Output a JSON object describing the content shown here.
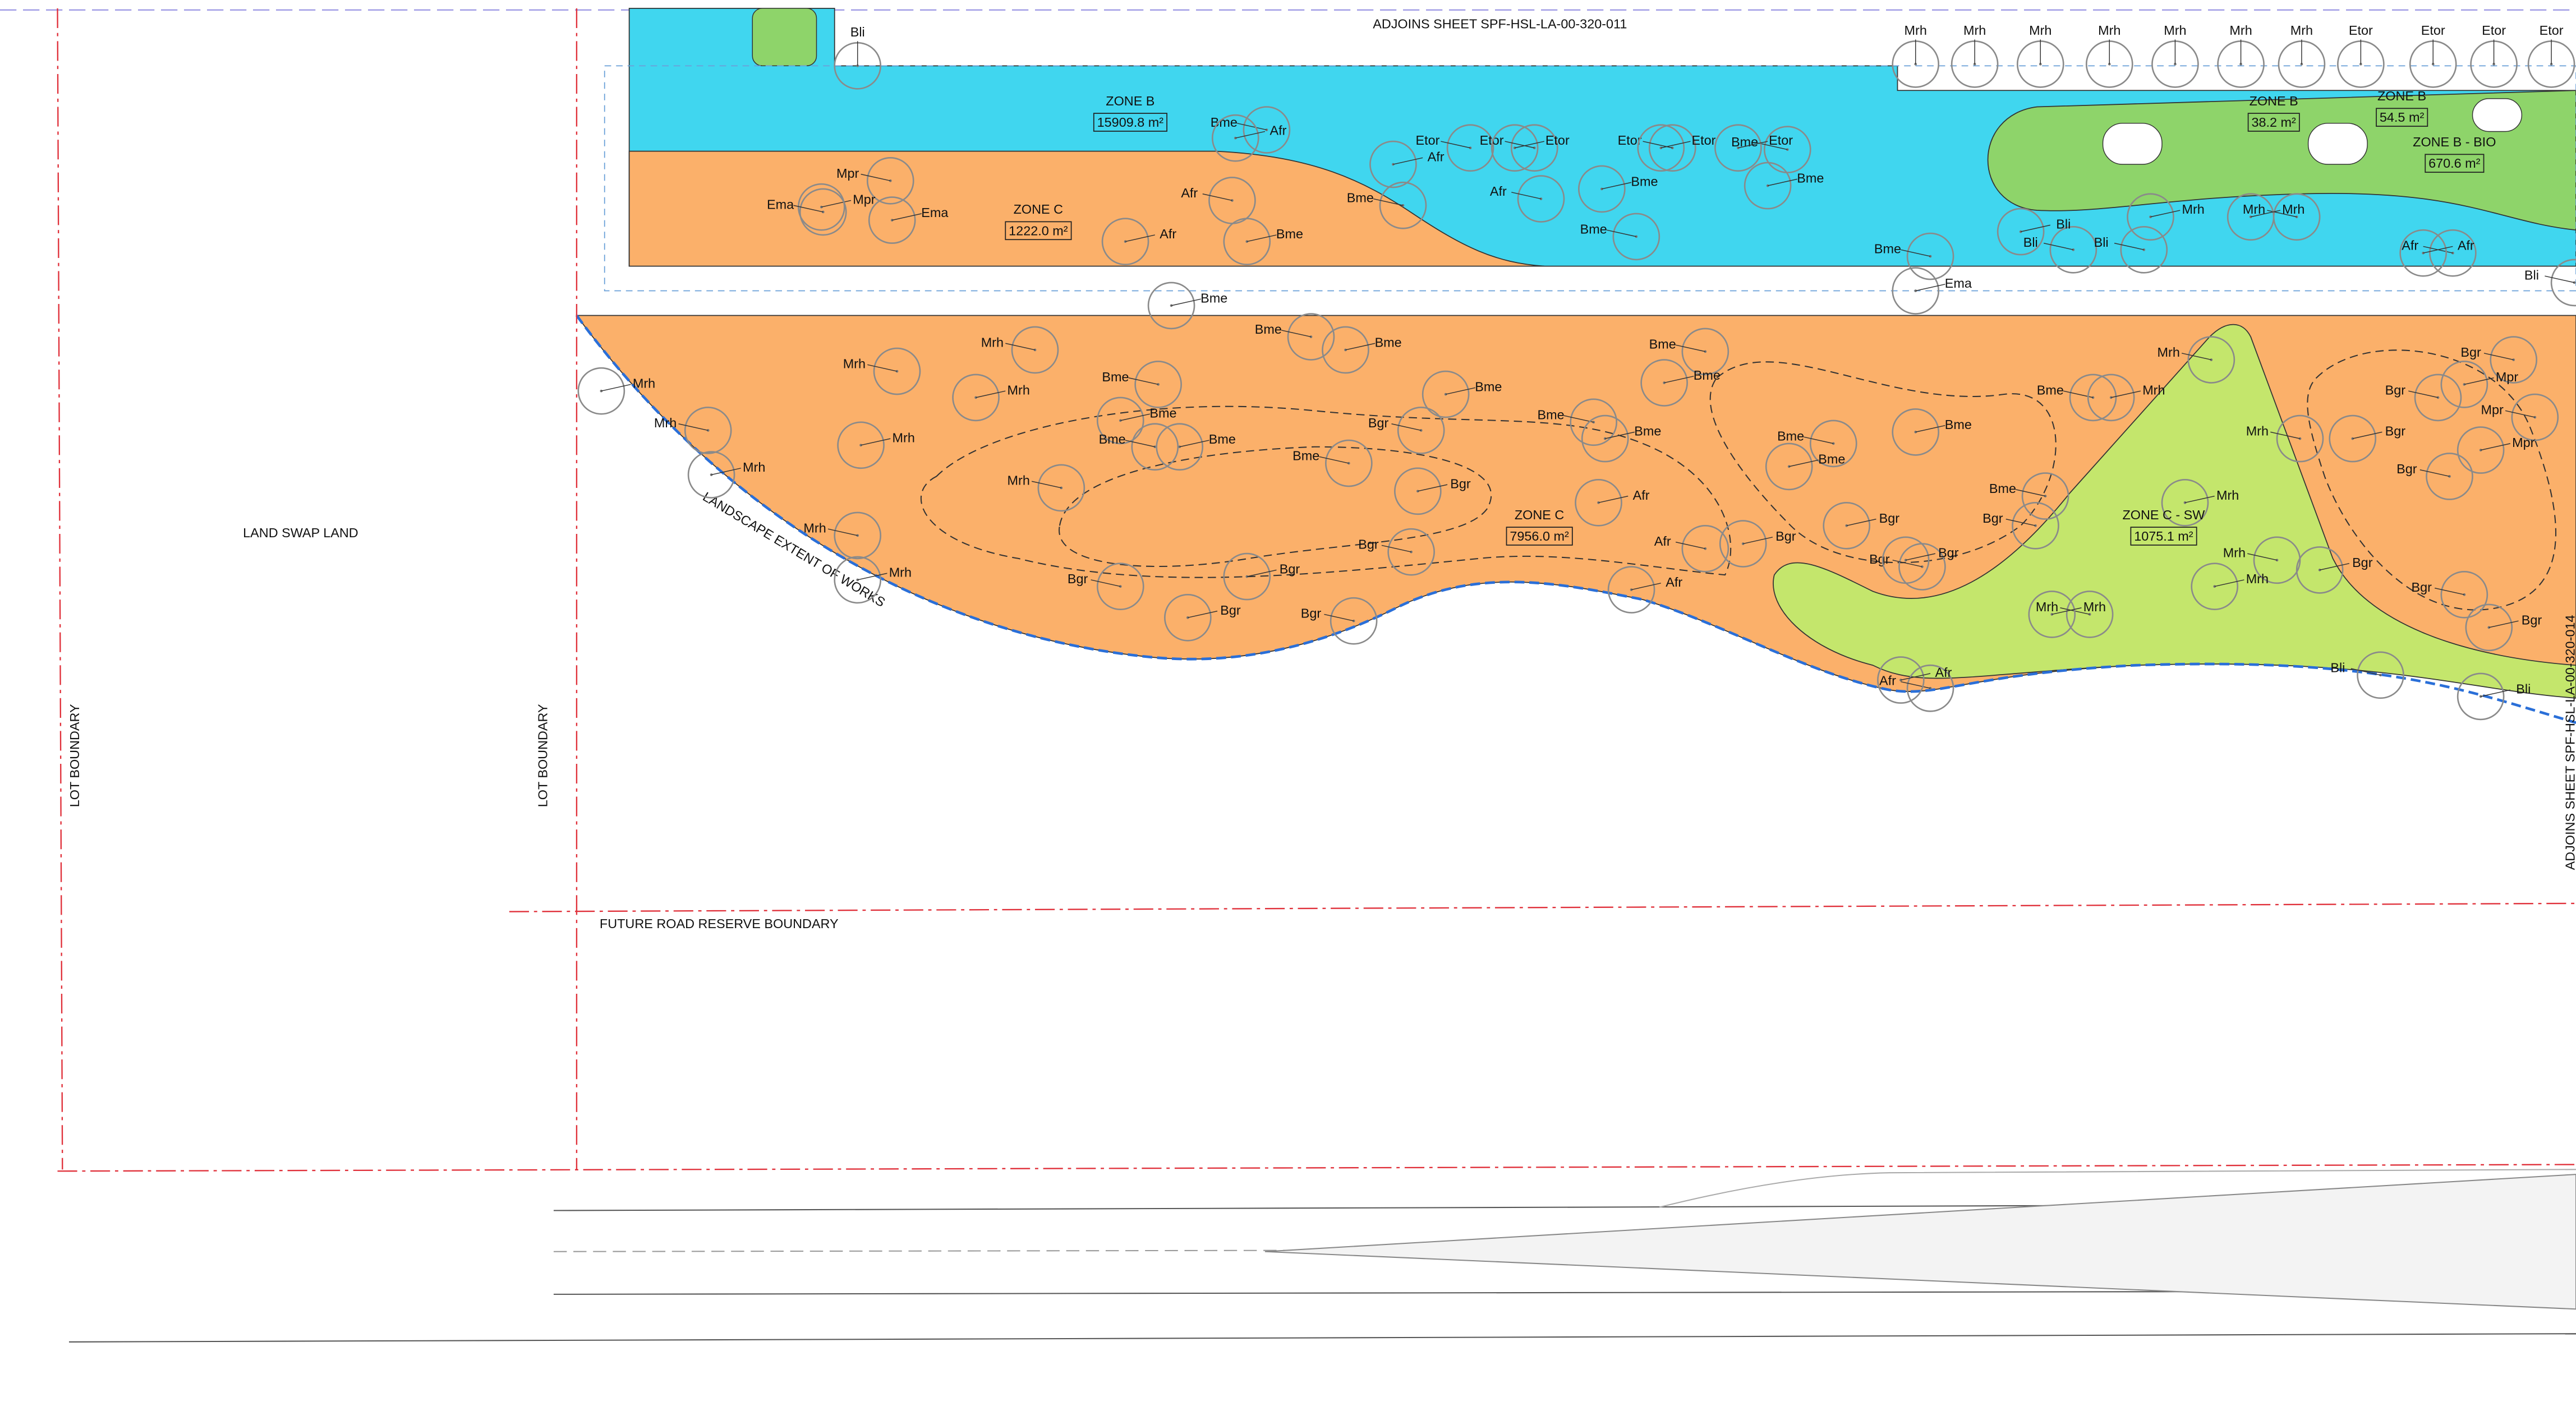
{
  "sheet_refs": {
    "top": "ADJOINS SHEET SPF-HSL-LA-00-320-011",
    "right": "ADJOINS SHEET SPF-HSL-LA-00-320-014"
  },
  "boundaries": {
    "land_swap": "LAND SWAP LAND",
    "lot_boundary_left": "LOT BOUNDARY",
    "lot_boundary_right": "LOT BOUNDARY",
    "future_road": "FUTURE ROAD RESERVE BOUNDARY",
    "extent": "LANDSCAPE EXTENT OF WORKS"
  },
  "zones": [
    {
      "name": "ZONE B",
      "area": "15909.8 m²"
    },
    {
      "name": "ZONE C",
      "area": "1222.0 m²"
    },
    {
      "name": "ZONE C",
      "area": "7956.0 m²"
    },
    {
      "name": "ZONE C - SW",
      "area": "1075.1 m²"
    },
    {
      "name": "ZONE B",
      "area": "38.2 m²"
    },
    {
      "name": "ZONE B",
      "area": "54.5 m²"
    },
    {
      "name": "ZONE B - BIO",
      "area": "670.6 m²"
    }
  ],
  "plants": [
    "Bli",
    "Mrh",
    "Mrh",
    "Mrh",
    "Mrh",
    "Mrh",
    "Mrh",
    "Mrh",
    "Etor",
    "Etor",
    "Etor",
    "Etor",
    "Bme",
    "Afr",
    "Etor",
    "Afr",
    "Etor",
    "Etor",
    "Etor",
    "Etor",
    "Bme",
    "Etor",
    "Mpr",
    "Mpr",
    "Ema",
    "Ema",
    "Afr",
    "Afr",
    "Bme",
    "Bme",
    "Afr",
    "Bme",
    "Bme",
    "Bme",
    "Bme",
    "Ema",
    "Bli",
    "Bli",
    "Bli",
    "Mrh",
    "Mrh",
    "Mrh",
    "Afr",
    "Afr",
    "Bli",
    "Bme",
    "Bme",
    "Bme",
    "Mrh",
    "Mrh",
    "Mrh",
    "Mrh",
    "Mrh",
    "Mrh",
    "Mrh",
    "Mrh",
    "Mrh",
    "Mrh",
    "Bme",
    "Bme",
    "Bme",
    "Bme",
    "Bme",
    "Bme",
    "Bme",
    "Bme",
    "Bme",
    "Bme",
    "Bgr",
    "Bgr",
    "Bgr",
    "Bgr",
    "Bgr",
    "Bgr",
    "Bgr",
    "Afr",
    "Afr",
    "Afr",
    "Bme",
    "Bme",
    "Bme",
    "Bme",
    "Bme",
    "Bgr",
    "Bgr",
    "Bgr",
    "Bgr",
    "Bgr",
    "Mrh",
    "Mrh",
    "Mrh",
    "Mrh",
    "Mrh",
    "Mrh",
    "Mrh",
    "Mrh",
    "Afr",
    "Afr",
    "Bgr",
    "Mpr",
    "Mpr",
    "Mpr",
    "Bgr",
    "Bgr",
    "Bgr",
    "Bgr",
    "Bgr",
    "Bgr",
    "Bli",
    "Bli"
  ]
}
